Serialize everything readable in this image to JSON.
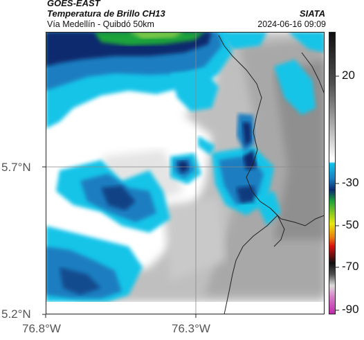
{
  "header": {
    "title": "GOES-EAST",
    "subtitle": "Temperatura de Brillo CH13",
    "organization": "SIATA",
    "route": "Vía Medellín - Quibdó 50km",
    "timestamp": "2024-06-16 09:09"
  },
  "map": {
    "lat_ticks": [
      "5.7°N",
      "5.2°N"
    ],
    "lon_ticks": [
      "76.8°W",
      "76.3°W"
    ],
    "gridline_color": "#888888",
    "border_color": "#222222"
  },
  "colorbar": {
    "tick_labels": [
      "20",
      "-30",
      "-50",
      "-70",
      "-90"
    ],
    "colors": {
      "black": "#101010",
      "dark_gray": "#505050",
      "gray": "#9a9a9a",
      "light_gray": "#dcdcdc",
      "white": "#ffffff",
      "dark_blue": "#0a2a6e",
      "blue": "#1a7ec0",
      "cyan": "#12c4e8",
      "green": "#1fa33a",
      "yellow": "#e8e810",
      "orange": "#e87a10",
      "red": "#d81010",
      "magenta": "#c02aa8",
      "pink": "#d77fc8"
    }
  }
}
